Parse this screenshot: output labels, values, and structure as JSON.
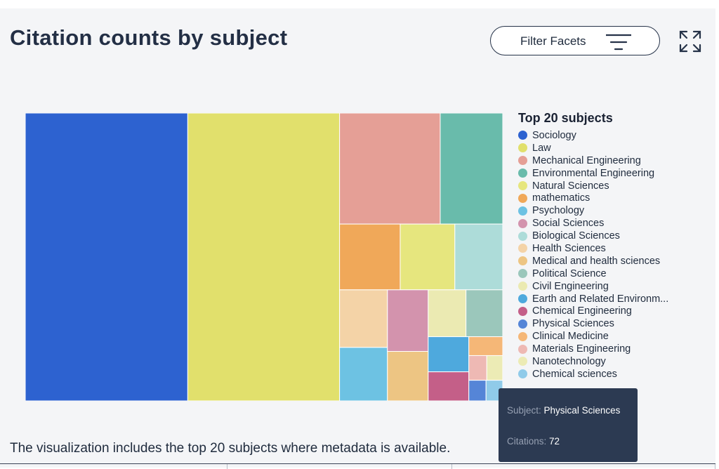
{
  "header": {
    "title": "Citation counts by subject",
    "filter_label": "Filter Facets"
  },
  "chart_data": {
    "type": "treemap",
    "legend_title": "Top 20 subjects",
    "categories": [
      "Sociology",
      "Law",
      "Mechanical Engineering",
      "Environmental Engineering",
      "Natural Sciences",
      "mathematics",
      "Psychology",
      "Social Sciences",
      "Biological Sciences",
      "Health Sciences",
      "Medical and health sciences",
      "Political Science",
      "Civil Engineering",
      "Earth and Related Environm...",
      "Chemical Engineering",
      "Physical Sciences",
      "Clinical Medicine",
      "Materials Engineering",
      "Nanotechnology",
      "Chemical sciences"
    ],
    "colors": [
      "#2d62d0",
      "#e1e06c",
      "#e59f96",
      "#69bbab",
      "#e6e67e",
      "#f0a859",
      "#6dc2e3",
      "#d393ad",
      "#addcd9",
      "#f4d3a7",
      "#edc583",
      "#9bc7bb",
      "#ebeab2",
      "#4ea9dd",
      "#c45f88",
      "#5585d7",
      "#f5b777",
      "#eeb9b4",
      "#ecebb5",
      "#90cbe9"
    ],
    "values": [
      9500,
      8880,
      2270,
      1410,
      730,
      810,
      520,
      510,
      640,
      560,
      410,
      350,
      360,
      290,
      240,
      72,
      130,
      90,
      80,
      70
    ],
    "tooltip": {
      "subject_label": "Subject:",
      "subject": "Physical Sciences",
      "citations_label": "Citations:",
      "citations": "72"
    }
  },
  "footnote": "The visualization includes the top 20 subjects where metadata is available."
}
